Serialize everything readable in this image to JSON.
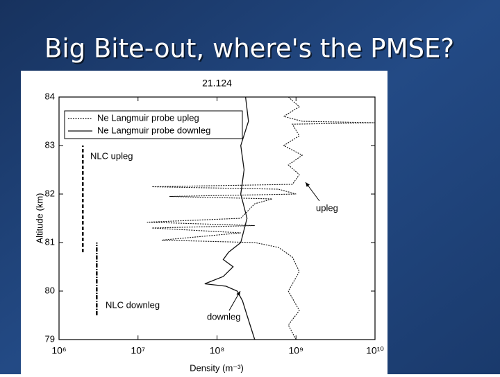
{
  "slide_title": "Big Bite-out, where's the PMSE?",
  "chart_data": {
    "type": "line",
    "title": "21.124",
    "x_label": "Density (m⁻³)",
    "y_label": "Altitude (km)",
    "xscale": "log",
    "grid": false,
    "legend": "upper left",
    "xlim": [
      1000000,
      10000000000
    ],
    "ylim": [
      79,
      84
    ],
    "xticks": [
      {
        "value": 1000000,
        "label": "10⁶"
      },
      {
        "value": 10000000,
        "label": "10⁷"
      },
      {
        "value": 100000000,
        "label": "10⁸"
      },
      {
        "value": 1000000000,
        "label": "10⁹"
      },
      {
        "value": 10000000000,
        "label": "10¹⁰"
      }
    ],
    "yticks": [
      79,
      80,
      81,
      82,
      83,
      84
    ],
    "series": [
      {
        "name": "Ne Langmuir probe upleg",
        "color": "#111111",
        "dash": "dotted",
        "altitude": [
          84.0,
          83.8,
          83.6,
          83.5,
          83.47,
          83.44,
          83.2,
          83.0,
          82.8,
          82.6,
          82.4,
          82.2,
          82.15,
          82.1,
          82.0,
          81.95,
          81.9,
          81.8,
          81.5,
          81.42,
          81.35,
          81.3,
          81.2,
          81.05,
          81.0,
          80.9,
          80.7,
          80.4,
          80.0,
          79.6,
          79.3,
          79.0
        ],
        "density": [
          800000000,
          1100000000,
          700000000,
          1200000000,
          10000000000,
          900000000,
          1100000000,
          700000000,
          1200000000,
          800000000,
          1100000000,
          900000000,
          15000000,
          600000000,
          1000000000,
          25000000,
          500000000,
          300000000,
          200000000,
          13000000,
          300000000,
          15000000,
          200000000,
          20000000,
          300000000,
          600000000,
          900000000,
          1100000000,
          800000000,
          1100000000,
          800000000,
          1000000000
        ]
      },
      {
        "name": "Ne Langmuir probe downleg",
        "color": "#111111",
        "dash": "solid",
        "altitude": [
          84.0,
          83.5,
          83.0,
          82.5,
          82.0,
          81.5,
          81.0,
          80.8,
          80.65,
          80.5,
          80.3,
          80.15,
          80.1,
          80.0,
          79.8,
          79.5,
          79.0
        ],
        "density": [
          230000000,
          250000000,
          200000000,
          220000000,
          200000000,
          240000000,
          200000000,
          140000000,
          120000000,
          160000000,
          120000000,
          70000000,
          130000000,
          180000000,
          210000000,
          240000000,
          300000000
        ]
      }
    ],
    "nlc_layers": [
      {
        "label": "NLC upleg",
        "density": 2000000,
        "altitude_range": [
          80.8,
          83.0
        ],
        "dash": "dashed"
      },
      {
        "label": "NLC downleg",
        "density": 3000000,
        "altitude_range": [
          79.5,
          81.0
        ],
        "dash": "dashdot"
      }
    ],
    "annotations": [
      "upleg",
      "downleg"
    ]
  }
}
